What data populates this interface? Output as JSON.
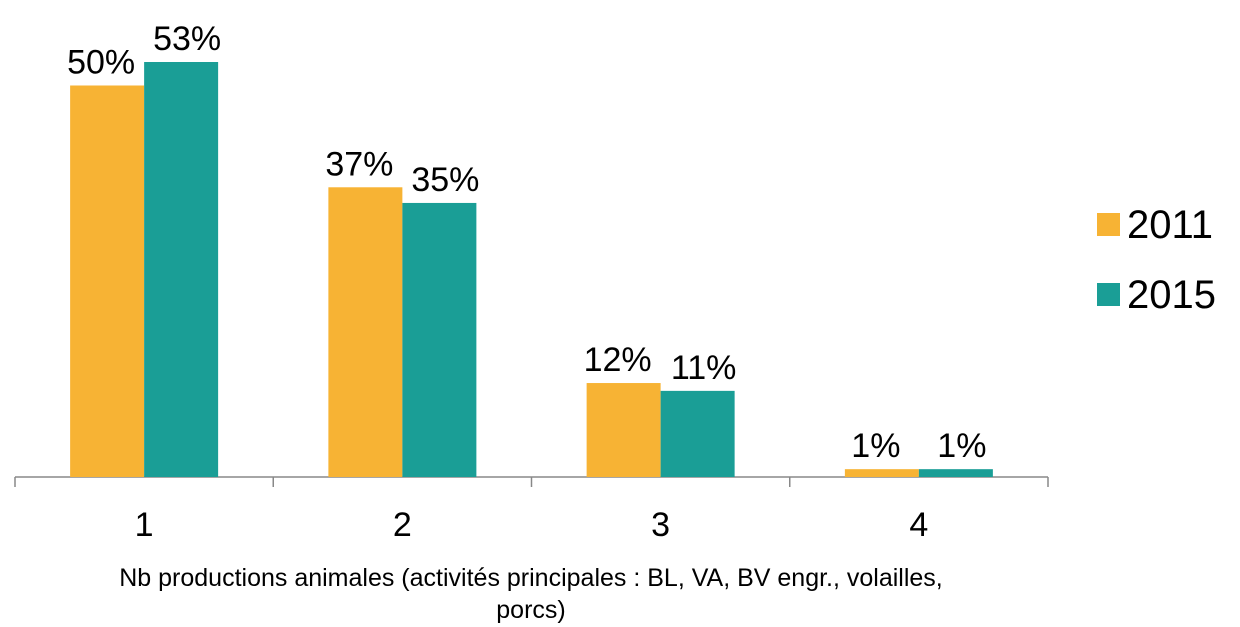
{
  "chart_data": {
    "type": "bar",
    "categories": [
      "1",
      "2",
      "3",
      "4"
    ],
    "series": [
      {
        "name": "2011",
        "color": "#f7b334",
        "values": [
          50,
          37,
          12,
          1
        ],
        "value_labels": [
          "50%",
          "37%",
          "12%",
          "1%"
        ]
      },
      {
        "name": "2015",
        "color": "#1a9e96",
        "values": [
          53,
          35,
          11,
          1
        ],
        "value_labels": [
          "53%",
          "35%",
          "11%",
          "1%"
        ]
      }
    ],
    "x_label": "Nb productions animales (activités principales : BL, VA, BV engr., volailles, porcs)",
    "legend": "right"
  }
}
